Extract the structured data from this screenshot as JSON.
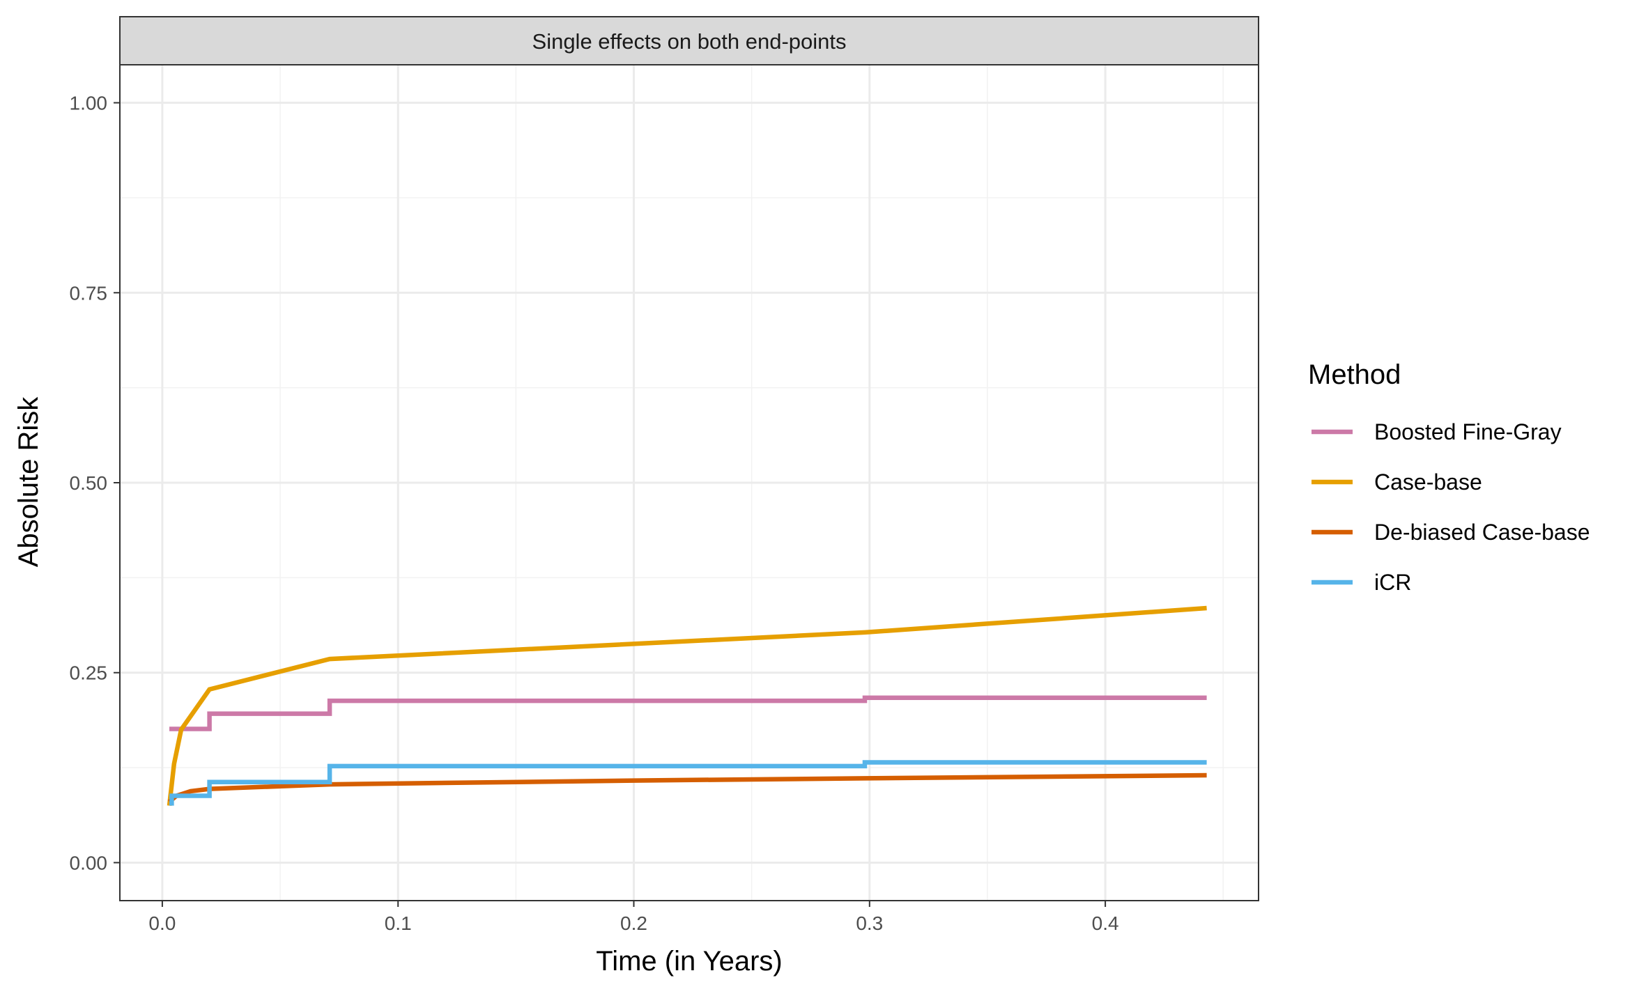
{
  "chart_data": {
    "type": "line",
    "title": "",
    "facet_label": "Single effects on both end-points",
    "xlabel": "Time (in Years)",
    "ylabel": "Absolute Risk",
    "xlim": [
      -0.018,
      0.465
    ],
    "ylim": [
      -0.05,
      1.05
    ],
    "x_ticks": [
      0.0,
      0.1,
      0.2,
      0.3,
      0.4
    ],
    "x_tick_labels": [
      "0.0",
      "0.1",
      "0.2",
      "0.3",
      "0.4"
    ],
    "y_ticks": [
      0.0,
      0.25,
      0.5,
      0.75,
      1.0
    ],
    "y_tick_labels": [
      "0.00",
      "0.25",
      "0.50",
      "0.75",
      "1.00"
    ],
    "grid": true,
    "legend": {
      "title": "Method",
      "position": "right"
    },
    "series": [
      {
        "name": "Boosted Fine-Gray",
        "color": "#CC79A7",
        "style": "step",
        "points": [
          [
            0.003,
            0.176
          ],
          [
            0.02,
            0.176
          ],
          [
            0.02,
            0.196
          ],
          [
            0.071,
            0.196
          ],
          [
            0.071,
            0.213
          ],
          [
            0.298,
            0.213
          ],
          [
            0.298,
            0.217
          ],
          [
            0.443,
            0.217
          ]
        ]
      },
      {
        "name": "Case-base",
        "color": "#E69F00",
        "style": "line",
        "points": [
          [
            0.003,
            0.075
          ],
          [
            0.005,
            0.13
          ],
          [
            0.008,
            0.175
          ],
          [
            0.02,
            0.228
          ],
          [
            0.071,
            0.268
          ],
          [
            0.298,
            0.303
          ],
          [
            0.443,
            0.335
          ]
        ]
      },
      {
        "name": "De-biased Case-base",
        "color": "#D55E00",
        "style": "line",
        "points": [
          [
            0.003,
            0.08
          ],
          [
            0.006,
            0.088
          ],
          [
            0.012,
            0.094
          ],
          [
            0.02,
            0.097
          ],
          [
            0.071,
            0.103
          ],
          [
            0.2,
            0.108
          ],
          [
            0.298,
            0.111
          ],
          [
            0.443,
            0.115
          ]
        ]
      },
      {
        "name": "iCR",
        "color": "#56B4E9",
        "style": "step",
        "points": [
          [
            0.003,
            0.078
          ],
          [
            0.004,
            0.078
          ],
          [
            0.004,
            0.088
          ],
          [
            0.02,
            0.088
          ],
          [
            0.02,
            0.106
          ],
          [
            0.071,
            0.106
          ],
          [
            0.071,
            0.127
          ],
          [
            0.298,
            0.127
          ],
          [
            0.298,
            0.132
          ],
          [
            0.443,
            0.132
          ]
        ]
      }
    ]
  }
}
